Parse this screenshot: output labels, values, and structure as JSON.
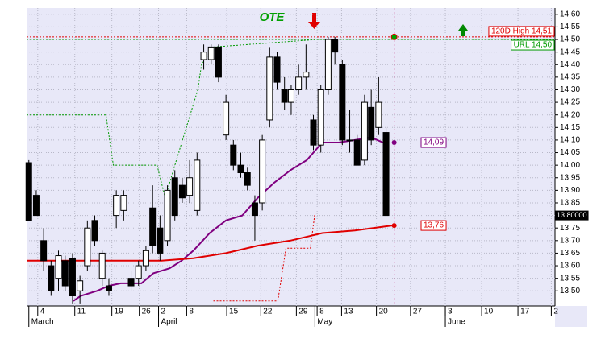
{
  "chart_data": {
    "type": "candlestick",
    "title": "OTE",
    "xlim": [
      0,
      71.3
    ],
    "ylim": [
      13.44,
      14.625
    ],
    "xticks": [
      {
        "value": 1.5,
        "label": "4"
      },
      {
        "value": 6.5,
        "label": "11"
      },
      {
        "value": 11.5,
        "label": "19"
      },
      {
        "value": 15.2,
        "label": "26"
      },
      {
        "value": 17.8,
        "label": "2"
      },
      {
        "value": 21.6,
        "label": "8"
      },
      {
        "value": 27,
        "label": "15"
      },
      {
        "value": 31.6,
        "label": "22"
      },
      {
        "value": 36.4,
        "label": "29"
      },
      {
        "value": 39.2,
        "label": "8"
      },
      {
        "value": 42.5,
        "label": "13"
      },
      {
        "value": 47.2,
        "label": "20"
      },
      {
        "value": 51.8,
        "label": "27"
      },
      {
        "value": 56.5,
        "label": "3"
      },
      {
        "value": 61.4,
        "label": "10"
      },
      {
        "value": 66.3,
        "label": "17"
      },
      {
        "value": 70.8,
        "label": "2"
      }
    ],
    "month_ticks": [
      {
        "value": 0.3,
        "label": "March"
      },
      {
        "value": 17.8,
        "label": "April"
      },
      {
        "value": 38.9,
        "label": "May"
      },
      {
        "value": 56.5,
        "label": "June"
      }
    ],
    "yticks": [
      {
        "value": 14.6,
        "label": "14.60"
      },
      {
        "value": 14.55,
        "label": "14.55"
      },
      {
        "value": 14.5,
        "label": "14.50"
      },
      {
        "value": 14.45,
        "label": "14.45"
      },
      {
        "value": 14.4,
        "label": "14.40"
      },
      {
        "value": 14.35,
        "label": "14.35"
      },
      {
        "value": 14.3,
        "label": "14.30"
      },
      {
        "value": 14.25,
        "label": "14.25"
      },
      {
        "value": 14.2,
        "label": "14.20"
      },
      {
        "value": 14.15,
        "label": "14.15"
      },
      {
        "value": 14.1,
        "label": "14.10"
      },
      {
        "value": 14.05,
        "label": "14.05"
      },
      {
        "value": 14,
        "label": "14.00"
      },
      {
        "value": 13.95,
        "label": "13.95"
      },
      {
        "value": 13.9,
        "label": "13.90"
      },
      {
        "value": 13.85,
        "label": "13.85"
      },
      {
        "value": 13.8,
        "label": "13.80"
      },
      {
        "value": 13.75,
        "label": "13.75"
      },
      {
        "value": 13.7,
        "label": "13.70"
      },
      {
        "value": 13.65,
        "label": "13.65"
      },
      {
        "value": 13.6,
        "label": "13.60"
      },
      {
        "value": 13.55,
        "label": "13.55"
      },
      {
        "value": 13.5,
        "label": "13.50"
      }
    ],
    "grid": true,
    "x": [
      0.3,
      1.3,
      2.3,
      3.3,
      4.3,
      5.2,
      6.2,
      7.2,
      8.2,
      9.2,
      10.2,
      11.1,
      12.1,
      13.1,
      14.1,
      15.1,
      16.1,
      17.0,
      18.0,
      19.0,
      20.0,
      21.0,
      22.0,
      23.0,
      23.9,
      24.9,
      25.9,
      26.9,
      27.9,
      28.9,
      29.8,
      30.8,
      31.8,
      32.8,
      33.8,
      34.8,
      35.7,
      36.7,
      37.7,
      38.7,
      39.7,
      40.7,
      41.6,
      42.6,
      43.6,
      44.6,
      45.6,
      46.5,
      47.5,
      48.5
    ],
    "open": [
      14.01,
      13.88,
      13.7,
      13.6,
      13.55,
      13.62,
      13.63,
      13.5,
      13.6,
      13.78,
      13.55,
      13.52,
      13.8,
      13.82,
      13.55,
      13.55,
      13.6,
      13.83,
      13.75,
      13.7,
      13.95,
      13.92,
      13.88,
      13.82,
      14.42,
      14.42,
      14.47,
      14.12,
      14.08,
      14.0,
      13.97,
      13.85,
      13.85,
      14.18,
      14.43,
      14.3,
      14.25,
      14.3,
      14.35,
      14.18,
      14.08,
      14.3,
      14.5,
      14.4,
      14.1,
      14.1,
      14.02,
      14.23,
      14.15,
      14.13
    ],
    "high": [
      14.02,
      13.9,
      13.75,
      13.62,
      13.66,
      13.64,
      13.65,
      13.56,
      13.78,
      13.8,
      13.66,
      13.55,
      13.9,
      13.9,
      13.58,
      13.62,
      13.68,
      13.92,
      13.8,
      13.92,
      13.98,
      13.95,
      14.02,
      14.05,
      14.48,
      14.48,
      14.48,
      14.28,
      14.1,
      14.05,
      13.99,
      13.88,
      14.12,
      14.47,
      14.45,
      14.35,
      14.32,
      14.4,
      14.48,
      14.2,
      14.32,
      14.51,
      14.51,
      14.42,
      14.22,
      14.12,
      14.28,
      14.3,
      14.35,
      14.15
    ],
    "low": [
      13.78,
      13.8,
      13.58,
      13.48,
      13.5,
      13.5,
      13.45,
      13.45,
      13.58,
      13.68,
      13.52,
      13.48,
      13.75,
      13.78,
      13.5,
      13.52,
      13.58,
      13.65,
      13.62,
      13.68,
      13.78,
      13.85,
      13.85,
      13.8,
      14.38,
      14.4,
      14.33,
      14.1,
      13.98,
      13.95,
      13.9,
      13.7,
      13.82,
      14.15,
      14.3,
      14.22,
      14.2,
      14.28,
      14.3,
      14.06,
      14.05,
      14.28,
      14.4,
      14.08,
      14.05,
      14.0,
      14.0,
      14.08,
      14.12,
      13.8
    ],
    "close": [
      13.78,
      13.8,
      13.62,
      13.5,
      13.64,
      13.52,
      13.48,
      13.54,
      13.75,
      13.7,
      13.65,
      13.5,
      13.88,
      13.88,
      13.52,
      13.6,
      13.66,
      13.68,
      13.65,
      13.9,
      13.8,
      13.87,
      13.95,
      14.02,
      14.45,
      14.47,
      14.35,
      14.25,
      14.0,
      13.97,
      13.92,
      13.8,
      14.1,
      14.43,
      14.33,
      14.25,
      14.3,
      14.35,
      14.37,
      14.08,
      14.3,
      14.5,
      14.45,
      14.1,
      14.1,
      14.0,
      14.25,
      14.1,
      14.25,
      13.8
    ],
    "series": [
      {
        "color": "#800080",
        "style": "solid",
        "x": [
          6.3,
          7.3,
          9.5,
          11.1,
          12.7,
          15.5,
          17.1,
          19.3,
          20.9,
          22.5,
          24.7,
          26.9,
          29.1,
          31.2,
          33.4,
          35.6,
          37.8,
          39.9,
          42.1,
          44.3,
          46.5,
          48.1
        ],
        "values": [
          13.46,
          13.48,
          13.5,
          13.52,
          13.53,
          13.53,
          13.57,
          13.59,
          13.62,
          13.66,
          13.73,
          13.78,
          13.8,
          13.87,
          13.93,
          13.98,
          14.02,
          14.09,
          14.09,
          14.1,
          14.11,
          14.09
        ]
      },
      {
        "color": "#e00000",
        "style": "solid",
        "x": [
          0,
          7.3,
          12.7,
          18.2,
          22.5,
          26.9,
          31.2,
          35.6,
          39.9,
          44.3,
          49.3
        ],
        "values": [
          13.62,
          13.62,
          13.62,
          13.62,
          13.63,
          13.65,
          13.68,
          13.7,
          13.73,
          13.74,
          13.76
        ]
      },
      {
        "color": "#009900",
        "style": "dotted",
        "x": [
          0,
          10.7,
          11.7,
          17.6,
          18.7,
          19.8,
          23.1,
          23.6,
          25.2,
          39.3,
          71.3
        ],
        "values": [
          14.2,
          14.2,
          14.0,
          14.0,
          13.87,
          13.98,
          14.3,
          14.4,
          14.47,
          14.5,
          14.5
        ]
      },
      {
        "color": "#e00000",
        "style": "dotted",
        "x": [
          25.2,
          33.9,
          35.0,
          38.3,
          38.9,
          48.6
        ],
        "values": [
          13.46,
          13.46,
          13.67,
          13.67,
          13.81,
          13.81
        ]
      }
    ],
    "cursor_x": 49.6,
    "levels": [
      {
        "label": "120D High 14,51",
        "value": 14.51,
        "color": "#e00000"
      },
      {
        "label": "URL 14,50",
        "value": 14.5,
        "color": "#009900"
      }
    ],
    "markers": [
      {
        "label": "14,09",
        "value": 14.09,
        "color": "#800080"
      },
      {
        "label": "13,76",
        "value": 13.76,
        "color": "#e00000"
      }
    ],
    "last_price": {
      "label": "13.80000",
      "value": 13.8
    }
  }
}
